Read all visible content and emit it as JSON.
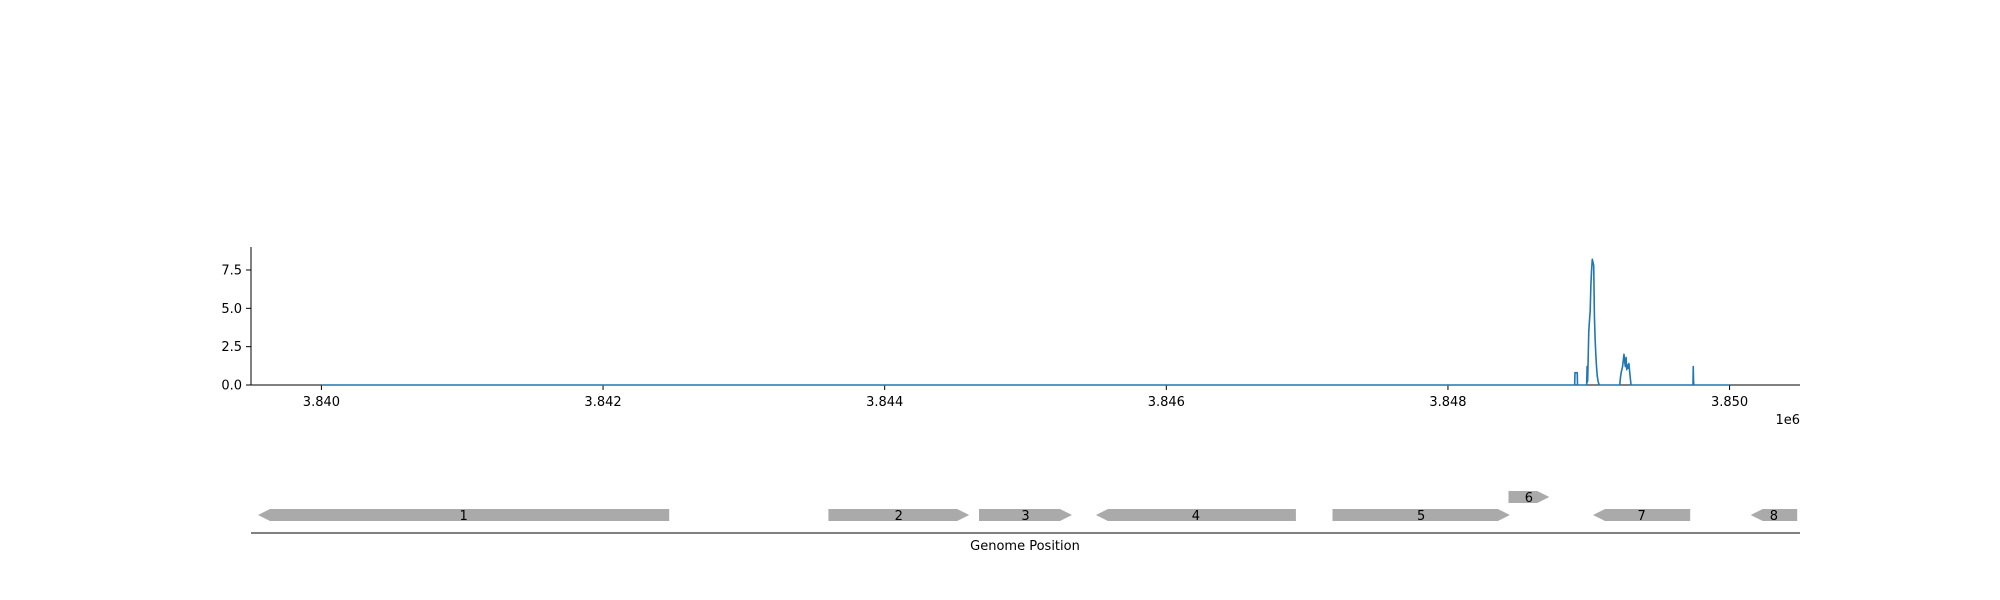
{
  "chart_data": [
    {
      "type": "line",
      "title": "",
      "xlabel": "",
      "ylabel": "",
      "x_offset_label": "1e6",
      "xlim": [
        3839500,
        3850500
      ],
      "ylim": [
        0,
        9
      ],
      "xticks": [
        3840000,
        3842000,
        3844000,
        3846000,
        3848000,
        3850000
      ],
      "xtick_labels": [
        "3.840",
        "3.842",
        "3.844",
        "3.846",
        "3.848",
        "3.850"
      ],
      "yticks": [
        0,
        2.5,
        5,
        7.5
      ],
      "ytick_labels": [
        "0.0",
        "2.5",
        "5.0",
        "7.5"
      ],
      "grid": false,
      "line_color": "#1f77b4",
      "series": [
        {
          "x": [
            3840000,
            3848900,
            3848902,
            3848905,
            3848915,
            3848918,
            3848920,
            3848985,
            3848988,
            3848990,
            3848992,
            3848994,
            3849000,
            3849005,
            3849010,
            3849015,
            3849020,
            3849025,
            3849030,
            3849035,
            3849040,
            3849045,
            3849050,
            3849055,
            3849060,
            3849065,
            3849070,
            3849075,
            3849080,
            3849085,
            3849090,
            3849095,
            3849100,
            3849105,
            3849110,
            3849220,
            3849225,
            3849230,
            3849235,
            3849240,
            3849245,
            3849250,
            3849255,
            3849260,
            3849265,
            3849270,
            3849275,
            3849280,
            3849285,
            3849290,
            3849300,
            3849305,
            3849310,
            3849740,
            3849742,
            3849744,
            3849746,
            3849748,
            3850000
          ],
          "y": [
            0,
            0,
            0.8,
            0.8,
            0.8,
            0.8,
            0,
            0,
            1.2,
            0.2,
            0.3,
            1.0,
            3.5,
            4.2,
            4.8,
            6.5,
            7.5,
            8.2,
            8.0,
            7.8,
            4.5,
            3.0,
            2.0,
            1.2,
            0.6,
            0.3,
            0.1,
            0,
            0,
            0,
            0,
            0,
            0,
            0,
            0,
            0,
            0.5,
            0.8,
            1.0,
            1.2,
            1.6,
            2.0,
            1.5,
            1.2,
            1.8,
            1.0,
            1.3,
            1.1,
            1.4,
            0.9,
            0,
            0,
            0,
            0,
            1.2,
            0.3,
            0,
            0,
            0
          ]
        }
      ]
    },
    {
      "type": "gene_track",
      "xlabel": "Genome Position",
      "xlim": [
        3839500,
        3850500
      ],
      "feature_color": "#aaaaaa",
      "features": [
        {
          "label": "1",
          "start": 3839550,
          "end": 3842470,
          "strand": -1,
          "row": 0
        },
        {
          "label": "2",
          "start": 3843600,
          "end": 3844600,
          "strand": 1,
          "row": 0
        },
        {
          "label": "3",
          "start": 3844670,
          "end": 3845330,
          "strand": 1,
          "row": 0
        },
        {
          "label": "4",
          "start": 3845500,
          "end": 3846920,
          "strand": -1,
          "row": 0
        },
        {
          "label": "5",
          "start": 3847180,
          "end": 3848440,
          "strand": 1,
          "row": 0
        },
        {
          "label": "6",
          "start": 3848430,
          "end": 3848720,
          "strand": 1,
          "row": 1
        },
        {
          "label": "7",
          "start": 3849030,
          "end": 3849720,
          "strand": -1,
          "row": 0
        },
        {
          "label": "8",
          "start": 3850150,
          "end": 3850480,
          "strand": -1,
          "row": 0
        }
      ]
    }
  ]
}
